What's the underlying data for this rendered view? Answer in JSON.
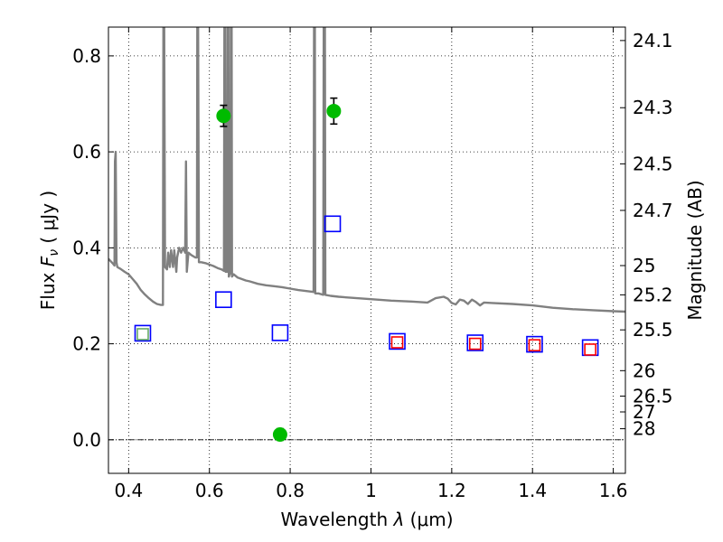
{
  "chart_data": {
    "type": "scatter",
    "xlabel": "Wavelength  λ (μm)",
    "ylabel": "Flux  F_ν  ( μJy )",
    "ylabel_parts": {
      "prefix": "Flux  ",
      "symbol": "F",
      "subscript": "ν",
      "suffix": "  ( μJy )"
    },
    "xlabel_parts": {
      "prefix": "Wavelength  ",
      "symbol": "λ",
      "suffix": " (μm)"
    },
    "y2label": "Magnitude (AB)",
    "xlim": [
      0.35,
      1.63
    ],
    "ylim": [
      -0.07,
      0.86
    ],
    "grid": true,
    "colors": {
      "spectrum": "#808080",
      "green_points": "#00bb00",
      "blue_squares": "#0000ff",
      "red_squares": "#ff0000",
      "green_squares": "#66aa66",
      "error_bars": "#000000",
      "dashdot_line": "#000000"
    },
    "x_ticks": [
      {
        "value": 0.4,
        "label": "0.4"
      },
      {
        "value": 0.6,
        "label": "0.6"
      },
      {
        "value": 0.8,
        "label": "0.8"
      },
      {
        "value": 1.0,
        "label": "1"
      },
      {
        "value": 1.2,
        "label": "1.2"
      },
      {
        "value": 1.4,
        "label": "1.4"
      },
      {
        "value": 1.6,
        "label": "1.6"
      }
    ],
    "y_ticks": [
      {
        "value": 0.0,
        "label": "0.0"
      },
      {
        "value": 0.2,
        "label": "0.2"
      },
      {
        "value": 0.4,
        "label": "0.4"
      },
      {
        "value": 0.6,
        "label": "0.6"
      },
      {
        "value": 0.8,
        "label": "0.8"
      }
    ],
    "mag_ticks": [
      {
        "flux": 0.832,
        "label": "24.1"
      },
      {
        "flux": 0.692,
        "label": "24.3"
      },
      {
        "flux": 0.575,
        "label": "24.5"
      },
      {
        "flux": 0.478,
        "label": "24.7"
      },
      {
        "flux": 0.363,
        "label": "25"
      },
      {
        "flux": 0.302,
        "label": "25.2"
      },
      {
        "flux": 0.229,
        "label": "25.5"
      },
      {
        "flux": 0.144,
        "label": "26"
      },
      {
        "flux": 0.091,
        "label": "26.5"
      },
      {
        "flux": 0.058,
        "label": "27"
      },
      {
        "flux": 0.023,
        "label": "28"
      }
    ],
    "zero_line": 0.0,
    "series": [
      {
        "kind": "detections",
        "marker": "circle",
        "points": [
          {
            "x": 0.635,
            "y": 0.675,
            "err": 0.022
          },
          {
            "x": 0.775,
            "y": 0.011,
            "err": 0.012
          },
          {
            "x": 0.908,
            "y": 0.685,
            "err": 0.027
          }
        ]
      },
      {
        "kind": "model-photometry",
        "marker": "square",
        "points": [
          {
            "x": 0.435,
            "y": 0.222
          },
          {
            "x": 0.635,
            "y": 0.292
          },
          {
            "x": 0.775,
            "y": 0.223
          },
          {
            "x": 0.905,
            "y": 0.45
          },
          {
            "x": 1.065,
            "y": 0.205
          },
          {
            "x": 1.258,
            "y": 0.202
          },
          {
            "x": 1.405,
            "y": 0.199
          },
          {
            "x": 1.543,
            "y": 0.192
          }
        ]
      },
      {
        "kind": "model-photometry-inner",
        "marker": "square",
        "points": [
          {
            "x": 1.065,
            "y": 0.203
          },
          {
            "x": 1.258,
            "y": 0.2
          },
          {
            "x": 1.405,
            "y": 0.197
          },
          {
            "x": 1.543,
            "y": 0.188
          }
        ]
      },
      {
        "kind": "model-photometry-green",
        "marker": "square",
        "points": [
          {
            "x": 0.435,
            "y": 0.22
          }
        ]
      }
    ],
    "spectrum": [
      [
        0.35,
        0.377
      ],
      [
        0.36,
        0.368
      ],
      [
        0.365,
        0.363
      ],
      [
        0.366,
        0.58
      ],
      [
        0.368,
        0.6
      ],
      [
        0.37,
        0.37
      ],
      [
        0.372,
        0.36
      ],
      [
        0.38,
        0.356
      ],
      [
        0.39,
        0.35
      ],
      [
        0.4,
        0.345
      ],
      [
        0.41,
        0.335
      ],
      [
        0.42,
        0.325
      ],
      [
        0.43,
        0.312
      ],
      [
        0.44,
        0.303
      ],
      [
        0.45,
        0.295
      ],
      [
        0.46,
        0.288
      ],
      [
        0.47,
        0.283
      ],
      [
        0.48,
        0.281
      ],
      [
        0.485,
        0.281
      ],
      [
        0.486,
        0.86
      ],
      [
        0.488,
        0.86
      ],
      [
        0.49,
        0.36
      ],
      [
        0.495,
        0.355
      ],
      [
        0.498,
        0.39
      ],
      [
        0.502,
        0.36
      ],
      [
        0.505,
        0.395
      ],
      [
        0.51,
        0.36
      ],
      [
        0.513,
        0.395
      ],
      [
        0.518,
        0.35
      ],
      [
        0.52,
        0.38
      ],
      [
        0.525,
        0.4
      ],
      [
        0.53,
        0.39
      ],
      [
        0.535,
        0.4
      ],
      [
        0.54,
        0.39
      ],
      [
        0.542,
        0.58
      ],
      [
        0.544,
        0.35
      ],
      [
        0.548,
        0.39
      ],
      [
        0.555,
        0.385
      ],
      [
        0.565,
        0.38
      ],
      [
        0.569,
        0.38
      ],
      [
        0.57,
        0.86
      ],
      [
        0.572,
        0.86
      ],
      [
        0.574,
        0.37
      ],
      [
        0.58,
        0.37
      ],
      [
        0.59,
        0.368
      ],
      [
        0.6,
        0.365
      ],
      [
        0.61,
        0.362
      ],
      [
        0.62,
        0.358
      ],
      [
        0.63,
        0.355
      ],
      [
        0.636,
        0.352
      ],
      [
        0.637,
        0.86
      ],
      [
        0.639,
        0.86
      ],
      [
        0.64,
        0.35
      ],
      [
        0.644,
        0.35
      ],
      [
        0.645,
        0.86
      ],
      [
        0.647,
        0.86
      ],
      [
        0.648,
        0.34
      ],
      [
        0.652,
        0.35
      ],
      [
        0.653,
        0.86
      ],
      [
        0.655,
        0.86
      ],
      [
        0.656,
        0.34
      ],
      [
        0.66,
        0.345
      ],
      [
        0.67,
        0.338
      ],
      [
        0.68,
        0.335
      ],
      [
        0.69,
        0.332
      ],
      [
        0.7,
        0.33
      ],
      [
        0.72,
        0.325
      ],
      [
        0.74,
        0.322
      ],
      [
        0.76,
        0.32
      ],
      [
        0.78,
        0.318
      ],
      [
        0.8,
        0.315
      ],
      [
        0.82,
        0.312
      ],
      [
        0.84,
        0.31
      ],
      [
        0.858,
        0.308
      ],
      [
        0.859,
        0.86
      ],
      [
        0.861,
        0.86
      ],
      [
        0.862,
        0.305
      ],
      [
        0.87,
        0.305
      ],
      [
        0.882,
        0.302
      ],
      [
        0.883,
        0.86
      ],
      [
        0.886,
        0.86
      ],
      [
        0.887,
        0.302
      ],
      [
        0.9,
        0.3
      ],
      [
        0.92,
        0.298
      ],
      [
        0.95,
        0.296
      ],
      [
        1.0,
        0.293
      ],
      [
        1.05,
        0.29
      ],
      [
        1.1,
        0.288
      ],
      [
        1.14,
        0.286
      ],
      [
        1.16,
        0.295
      ],
      [
        1.18,
        0.298
      ],
      [
        1.19,
        0.294
      ],
      [
        1.2,
        0.285
      ],
      [
        1.21,
        0.282
      ],
      [
        1.22,
        0.292
      ],
      [
        1.23,
        0.29
      ],
      [
        1.24,
        0.283
      ],
      [
        1.25,
        0.292
      ],
      [
        1.26,
        0.287
      ],
      [
        1.27,
        0.28
      ],
      [
        1.28,
        0.286
      ],
      [
        1.3,
        0.285
      ],
      [
        1.35,
        0.283
      ],
      [
        1.4,
        0.28
      ],
      [
        1.45,
        0.275
      ],
      [
        1.5,
        0.272
      ],
      [
        1.55,
        0.27
      ],
      [
        1.6,
        0.268
      ],
      [
        1.63,
        0.267
      ]
    ]
  }
}
